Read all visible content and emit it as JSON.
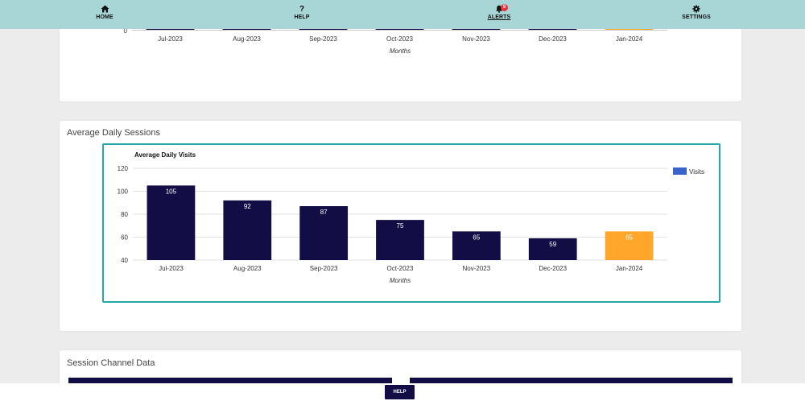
{
  "nav": {
    "home_label": "HOME",
    "help_label": "HELP",
    "alerts_label": "ALERTS",
    "alerts_badge": "9",
    "settings_label": "SETTINGS"
  },
  "top_chart": {
    "y_tick": "0",
    "x_label": "Months",
    "categories": [
      "Jul-2023",
      "Aug-2023",
      "Sep-2023",
      "Oct-2023",
      "Nov-2023",
      "Dec-2023",
      "Jan-2024"
    ]
  },
  "sessions_card": {
    "title": "Average Daily Sessions"
  },
  "chart_data": {
    "type": "bar",
    "title": "Average Daily Visits",
    "xlabel": "Months",
    "ylabel": "",
    "categories": [
      "Jul-2023",
      "Aug-2023",
      "Sep-2023",
      "Oct-2023",
      "Nov-2023",
      "Dec-2023",
      "Jan-2024"
    ],
    "series": [
      {
        "name": "Visits",
        "values": [
          105,
          92,
          87,
          75,
          65,
          59,
          65
        ]
      }
    ],
    "ylim": [
      40,
      120
    ],
    "yticks": [
      40,
      60,
      80,
      100,
      120
    ],
    "grid": true,
    "legend": "top-right",
    "colors": {
      "bar": "#130d45",
      "highlight": "#ffa62b",
      "legend": "#3a63c9"
    },
    "highlight_category": "Jan-2024"
  },
  "channel_card": {
    "title": "Session Channel Data"
  },
  "footer": {
    "help_label": "HELP"
  }
}
